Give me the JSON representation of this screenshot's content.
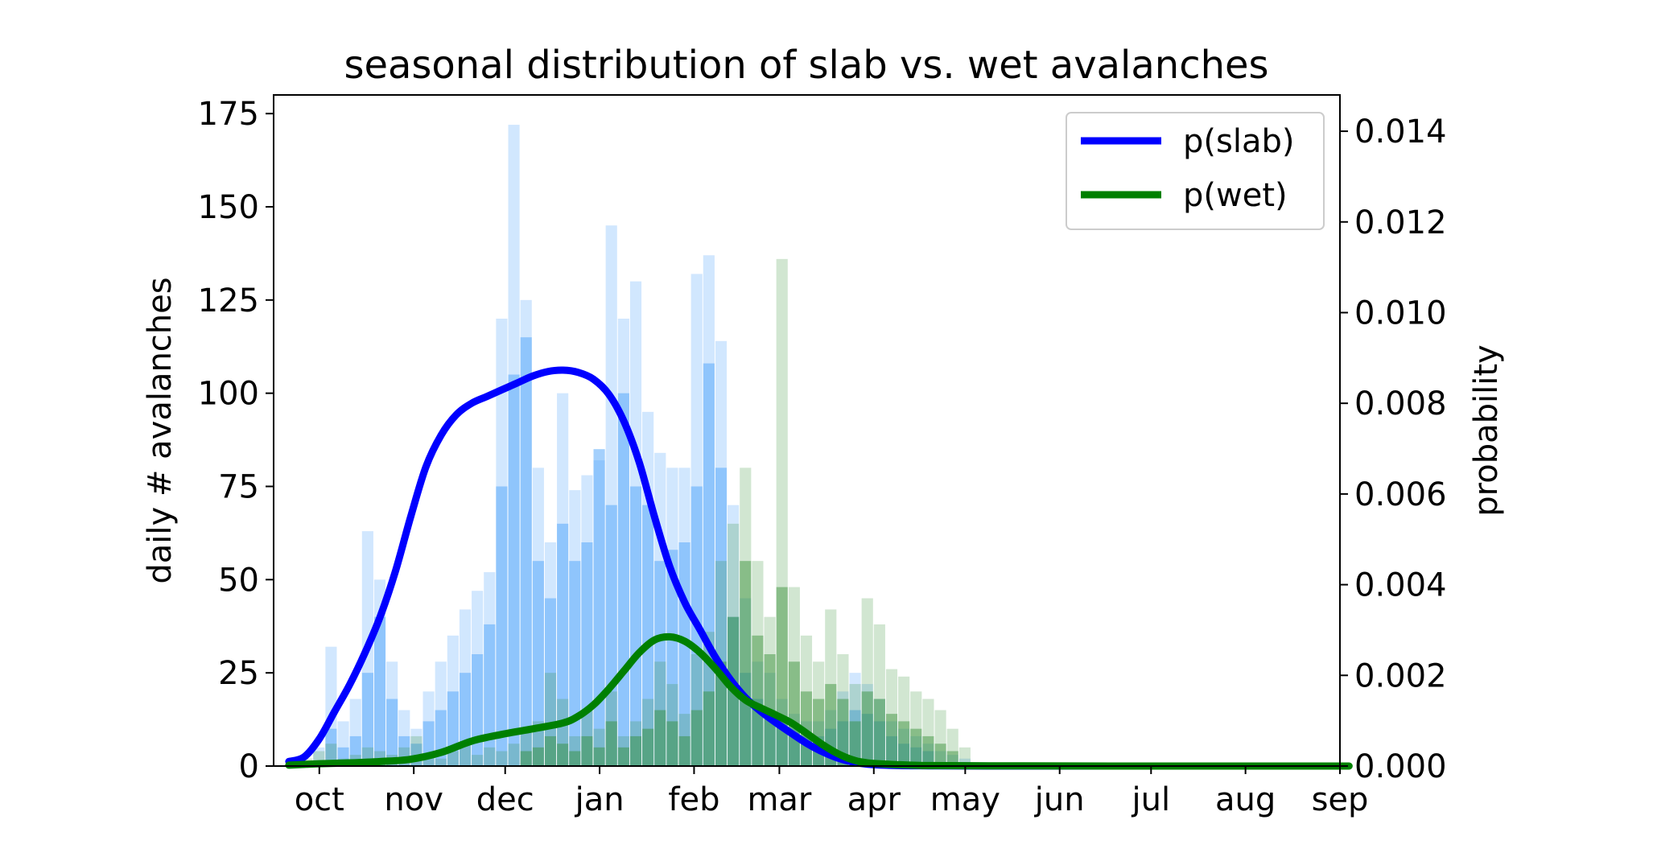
{
  "chart_data": {
    "type": "bar",
    "title": "seasonal distribution of slab vs. wet avalanches",
    "xlabel": "",
    "ylabel": "daily # avalanches",
    "y2label": "probability",
    "xlim_days": [
      -15,
      335
    ],
    "ylim": [
      0,
      180
    ],
    "y2lim": [
      0,
      0.0148
    ],
    "x_ticks": [
      {
        "label": "oct",
        "day": 0
      },
      {
        "label": "nov",
        "day": 31
      },
      {
        "label": "dec",
        "day": 61
      },
      {
        "label": "jan",
        "day": 92
      },
      {
        "label": "feb",
        "day": 123
      },
      {
        "label": "mar",
        "day": 151
      },
      {
        "label": "apr",
        "day": 182
      },
      {
        "label": "may",
        "day": 212
      },
      {
        "label": "jun",
        "day": 243
      },
      {
        "label": "jul",
        "day": 273
      },
      {
        "label": "aug",
        "day": 304
      },
      {
        "label": "sep",
        "day": 335
      }
    ],
    "y_ticks": [
      0,
      25,
      50,
      75,
      100,
      125,
      150,
      175
    ],
    "y2_ticks": [
      "0.000",
      "0.002",
      "0.004",
      "0.006",
      "0.008",
      "0.010",
      "0.012",
      "0.014"
    ],
    "grid": false,
    "legend_position": "top-right",
    "legend": [
      {
        "label": "p(slab)",
        "color": "#0000ff"
      },
      {
        "label": "p(wet)",
        "color": "#008000"
      }
    ],
    "histograms": [
      {
        "name": "slab daily counts",
        "color": "#5aa9fa",
        "opacity": 0.28,
        "bin_width_days": 4,
        "bars": [
          [
            -10,
            0
          ],
          [
            -6,
            0
          ],
          [
            -2,
            5
          ],
          [
            2,
            32
          ],
          [
            6,
            12
          ],
          [
            10,
            18
          ],
          [
            14,
            63
          ],
          [
            18,
            50
          ],
          [
            22,
            28
          ],
          [
            26,
            15
          ],
          [
            30,
            10
          ],
          [
            34,
            20
          ],
          [
            38,
            28
          ],
          [
            42,
            35
          ],
          [
            46,
            42
          ],
          [
            50,
            47
          ],
          [
            54,
            52
          ],
          [
            58,
            120
          ],
          [
            62,
            172
          ],
          [
            66,
            125
          ],
          [
            70,
            80
          ],
          [
            74,
            60
          ],
          [
            78,
            100
          ],
          [
            82,
            74
          ],
          [
            86,
            78
          ],
          [
            90,
            82
          ],
          [
            94,
            145
          ],
          [
            98,
            120
          ],
          [
            102,
            130
          ],
          [
            106,
            95
          ],
          [
            110,
            84
          ],
          [
            114,
            80
          ],
          [
            118,
            80
          ],
          [
            122,
            132
          ],
          [
            126,
            137
          ],
          [
            130,
            114
          ],
          [
            134,
            70
          ],
          [
            138,
            45
          ],
          [
            142,
            28
          ],
          [
            146,
            25
          ],
          [
            150,
            18
          ],
          [
            154,
            14
          ],
          [
            158,
            12
          ],
          [
            162,
            12
          ],
          [
            166,
            15
          ],
          [
            170,
            20
          ],
          [
            174,
            25
          ],
          [
            178,
            22
          ],
          [
            182,
            18
          ],
          [
            186,
            12
          ],
          [
            190,
            10
          ],
          [
            194,
            8
          ],
          [
            198,
            6
          ],
          [
            202,
            4
          ],
          [
            206,
            3
          ],
          [
            210,
            2
          ],
          [
            214,
            1
          ],
          [
            218,
            1
          ]
        ]
      },
      {
        "name": "slab daily counts (overlay)",
        "color": "#5aa9fa",
        "opacity": 0.55,
        "bin_width_days": 4,
        "bars": [
          [
            2,
            10
          ],
          [
            6,
            5
          ],
          [
            10,
            8
          ],
          [
            14,
            25
          ],
          [
            18,
            40
          ],
          [
            22,
            18
          ],
          [
            26,
            8
          ],
          [
            30,
            6
          ],
          [
            34,
            12
          ],
          [
            38,
            15
          ],
          [
            42,
            20
          ],
          [
            46,
            25
          ],
          [
            50,
            30
          ],
          [
            54,
            38
          ],
          [
            58,
            75
          ],
          [
            62,
            105
          ],
          [
            66,
            115
          ],
          [
            70,
            55
          ],
          [
            74,
            45
          ],
          [
            78,
            65
          ],
          [
            82,
            55
          ],
          [
            86,
            60
          ],
          [
            90,
            85
          ],
          [
            94,
            70
          ],
          [
            98,
            100
          ],
          [
            102,
            75
          ],
          [
            106,
            70
          ],
          [
            110,
            55
          ],
          [
            114,
            58
          ],
          [
            118,
            60
          ],
          [
            122,
            75
          ],
          [
            126,
            108
          ],
          [
            130,
            80
          ],
          [
            134,
            40
          ],
          [
            138,
            25
          ],
          [
            142,
            18
          ],
          [
            146,
            15
          ],
          [
            150,
            12
          ],
          [
            154,
            10
          ],
          [
            158,
            8
          ],
          [
            162,
            8
          ],
          [
            166,
            10
          ],
          [
            170,
            12
          ],
          [
            174,
            15
          ],
          [
            178,
            14
          ],
          [
            182,
            12
          ],
          [
            186,
            8
          ],
          [
            190,
            6
          ],
          [
            194,
            5
          ],
          [
            198,
            4
          ]
        ]
      },
      {
        "name": "wet daily counts",
        "color": "#2e8b2e",
        "opacity": 0.22,
        "bin_width_days": 4,
        "bars": [
          [
            -6,
            2
          ],
          [
            -2,
            4
          ],
          [
            2,
            6
          ],
          [
            6,
            2
          ],
          [
            10,
            3
          ],
          [
            14,
            5
          ],
          [
            18,
            4
          ],
          [
            22,
            3
          ],
          [
            26,
            5
          ],
          [
            30,
            8
          ],
          [
            34,
            3
          ],
          [
            38,
            2
          ],
          [
            42,
            4
          ],
          [
            46,
            6
          ],
          [
            50,
            3
          ],
          [
            54,
            5
          ],
          [
            58,
            4
          ],
          [
            62,
            6
          ],
          [
            66,
            10
          ],
          [
            70,
            12
          ],
          [
            74,
            25
          ],
          [
            78,
            18
          ],
          [
            82,
            8
          ],
          [
            86,
            15
          ],
          [
            90,
            10
          ],
          [
            94,
            20
          ],
          [
            98,
            8
          ],
          [
            102,
            12
          ],
          [
            106,
            18
          ],
          [
            110,
            28
          ],
          [
            114,
            22
          ],
          [
            118,
            14
          ],
          [
            122,
            30
          ],
          [
            126,
            36
          ],
          [
            130,
            55
          ],
          [
            134,
            65
          ],
          [
            138,
            80
          ],
          [
            142,
            55
          ],
          [
            146,
            40
          ],
          [
            150,
            136
          ],
          [
            154,
            48
          ],
          [
            158,
            35
          ],
          [
            162,
            28
          ],
          [
            166,
            42
          ],
          [
            170,
            30
          ],
          [
            174,
            22
          ],
          [
            178,
            45
          ],
          [
            182,
            38
          ],
          [
            186,
            26
          ],
          [
            190,
            24
          ],
          [
            194,
            20
          ],
          [
            198,
            18
          ],
          [
            202,
            15
          ],
          [
            206,
            10
          ],
          [
            210,
            5
          ]
        ]
      },
      {
        "name": "wet daily counts (overlay)",
        "color": "#2e8b2e",
        "opacity": 0.45,
        "bin_width_days": 4,
        "bars": [
          [
            66,
            4
          ],
          [
            70,
            5
          ],
          [
            74,
            8
          ],
          [
            78,
            6
          ],
          [
            82,
            4
          ],
          [
            86,
            8
          ],
          [
            90,
            5
          ],
          [
            94,
            12
          ],
          [
            98,
            5
          ],
          [
            102,
            8
          ],
          [
            106,
            10
          ],
          [
            110,
            15
          ],
          [
            114,
            12
          ],
          [
            118,
            8
          ],
          [
            122,
            15
          ],
          [
            126,
            20
          ],
          [
            130,
            28
          ],
          [
            134,
            40
          ],
          [
            138,
            55
          ],
          [
            142,
            35
          ],
          [
            146,
            30
          ],
          [
            150,
            48
          ],
          [
            154,
            28
          ],
          [
            158,
            20
          ],
          [
            162,
            18
          ],
          [
            166,
            22
          ],
          [
            170,
            18
          ],
          [
            174,
            12
          ],
          [
            178,
            20
          ],
          [
            182,
            18
          ],
          [
            186,
            14
          ],
          [
            190,
            12
          ],
          [
            194,
            10
          ],
          [
            198,
            8
          ],
          [
            202,
            6
          ],
          [
            206,
            4
          ]
        ]
      }
    ],
    "series": [
      {
        "name": "p(slab)",
        "color": "#0000ff",
        "axis": "y2",
        "points": [
          [
            -10,
            0.0001
          ],
          [
            -5,
            0.0002
          ],
          [
            0,
            0.0006
          ],
          [
            5,
            0.0012
          ],
          [
            10,
            0.0018
          ],
          [
            15,
            0.0025
          ],
          [
            20,
            0.0033
          ],
          [
            25,
            0.0043
          ],
          [
            30,
            0.0055
          ],
          [
            35,
            0.0066
          ],
          [
            40,
            0.0073
          ],
          [
            45,
            0.00775
          ],
          [
            50,
            0.008
          ],
          [
            55,
            0.00815
          ],
          [
            60,
            0.0083
          ],
          [
            65,
            0.00845
          ],
          [
            70,
            0.0086
          ],
          [
            75,
            0.0087
          ],
          [
            80,
            0.00873
          ],
          [
            85,
            0.00868
          ],
          [
            90,
            0.00853
          ],
          [
            95,
            0.0082
          ],
          [
            100,
            0.0076
          ],
          [
            105,
            0.0067
          ],
          [
            110,
            0.0055
          ],
          [
            115,
            0.0044
          ],
          [
            120,
            0.0036
          ],
          [
            125,
            0.003
          ],
          [
            130,
            0.0024
          ],
          [
            135,
            0.0019
          ],
          [
            140,
            0.0015
          ],
          [
            145,
            0.0012
          ],
          [
            150,
            0.00095
          ],
          [
            155,
            0.00072
          ],
          [
            160,
            0.0005
          ],
          [
            165,
            0.00032
          ],
          [
            170,
            0.00018
          ],
          [
            175,
            9e-05
          ],
          [
            180,
            4e-05
          ],
          [
            190,
            1e-05
          ],
          [
            200,
            5e-06
          ],
          [
            220,
            0.0
          ],
          [
            280,
            0.0
          ],
          [
            320,
            0.0
          ]
        ]
      },
      {
        "name": "p(wet)",
        "color": "#008000",
        "axis": "y2",
        "points": [
          [
            -10,
            2e-05
          ],
          [
            0,
            5e-05
          ],
          [
            10,
            7e-05
          ],
          [
            20,
            0.0001
          ],
          [
            30,
            0.00015
          ],
          [
            40,
            0.0003
          ],
          [
            50,
            0.00055
          ],
          [
            60,
            0.0007
          ],
          [
            70,
            0.00082
          ],
          [
            80,
            0.00095
          ],
          [
            85,
            0.0011
          ],
          [
            90,
            0.00135
          ],
          [
            95,
            0.0017
          ],
          [
            100,
            0.0021
          ],
          [
            105,
            0.0025
          ],
          [
            110,
            0.00278
          ],
          [
            115,
            0.00285
          ],
          [
            120,
            0.00275
          ],
          [
            125,
            0.0025
          ],
          [
            130,
            0.00215
          ],
          [
            135,
            0.00175
          ],
          [
            140,
            0.00145
          ],
          [
            145,
            0.00128
          ],
          [
            150,
            0.00112
          ],
          [
            155,
            0.00095
          ],
          [
            160,
            0.00072
          ],
          [
            165,
            0.00048
          ],
          [
            170,
            0.00028
          ],
          [
            175,
            0.00014
          ],
          [
            180,
            7e-05
          ],
          [
            190,
            3e-05
          ],
          [
            200,
            1e-05
          ],
          [
            220,
            5e-06
          ],
          [
            260,
            0.0
          ],
          [
            300,
            0.0
          ],
          [
            338,
            0.0
          ]
        ]
      }
    ]
  }
}
